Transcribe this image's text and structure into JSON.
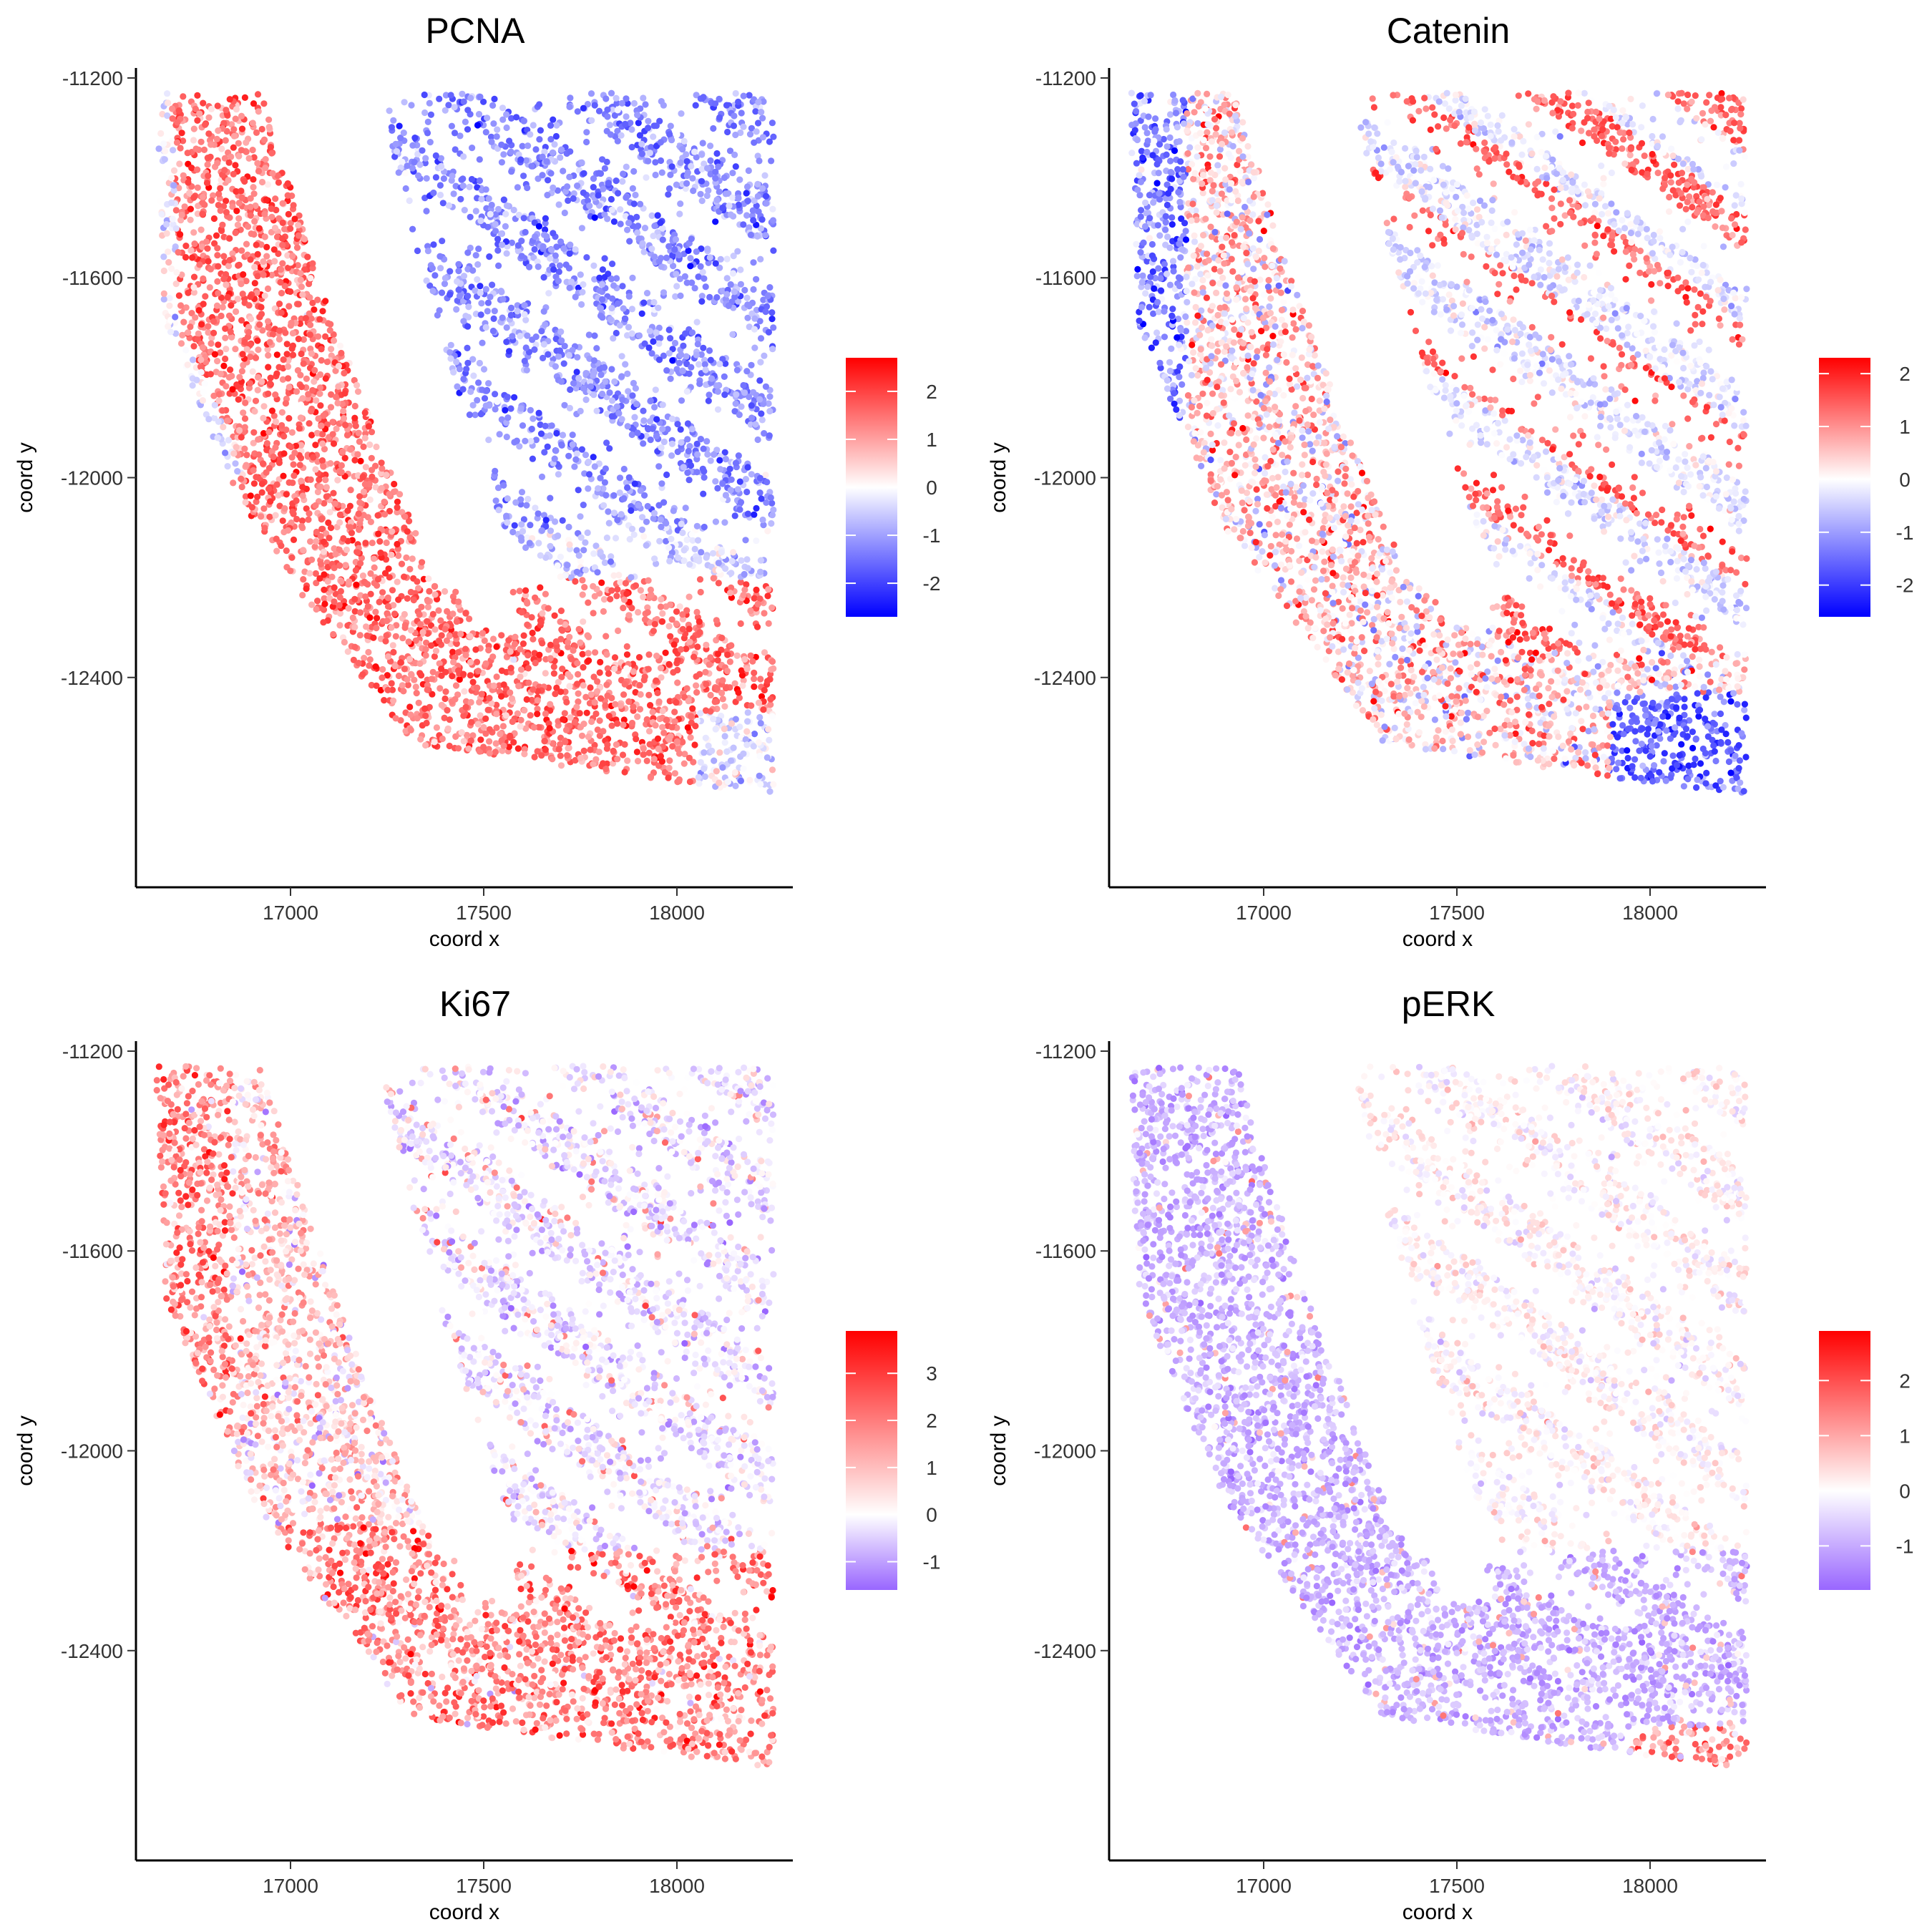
{
  "figure": {
    "panels_count": 4
  },
  "chart_data": [
    {
      "type": "scatter",
      "title": "PCNA",
      "xlabel": "coord x",
      "ylabel": "coord y",
      "xlim": [
        16600,
        18300
      ],
      "ylim": [
        -12820,
        -11180
      ],
      "xticks": [
        17000,
        17500,
        18000
      ],
      "xtick_labels": [
        "17000",
        "17500",
        "18000"
      ],
      "yticks": [
        -11200,
        -11600,
        -12000,
        -12400
      ],
      "ytick_labels": [
        "-11200",
        "-11600",
        "-12000",
        "-12400"
      ],
      "grid": false,
      "legend_placement": "right",
      "colorbar": {
        "range": [
          -2.7,
          2.7
        ],
        "ticks": [
          -2,
          -1,
          0,
          1,
          2
        ],
        "tick_labels": [
          "-2",
          "-1",
          "0",
          "1",
          "2"
        ],
        "low_color": "#0000ff",
        "mid_color": "#ffffff",
        "high_color": "#ff0000"
      },
      "pattern": "pcna",
      "seed": 11
    },
    {
      "type": "scatter",
      "title": "Catenin",
      "xlabel": "coord x",
      "ylabel": "coord y",
      "xlim": [
        16600,
        18300
      ],
      "ylim": [
        -12820,
        -11180
      ],
      "xticks": [
        17000,
        17500,
        18000
      ],
      "xtick_labels": [
        "17000",
        "17500",
        "18000"
      ],
      "yticks": [
        -11200,
        -11600,
        -12000,
        -12400
      ],
      "ytick_labels": [
        "-11200",
        "-11600",
        "-12000",
        "-12400"
      ],
      "grid": false,
      "legend_placement": "right",
      "colorbar": {
        "range": [
          -2.6,
          2.3
        ],
        "ticks": [
          -2,
          -1,
          0,
          1,
          2
        ],
        "tick_labels": [
          "-2",
          "-1",
          "0",
          "1",
          "2"
        ],
        "low_color": "#0000ff",
        "mid_color": "#ffffff",
        "high_color": "#ff0000"
      },
      "pattern": "catenin",
      "seed": 23
    },
    {
      "type": "scatter",
      "title": "Ki67",
      "xlabel": "coord x",
      "ylabel": "coord y",
      "xlim": [
        16600,
        18300
      ],
      "ylim": [
        -12820,
        -11180
      ],
      "xticks": [
        17000,
        17500,
        18000
      ],
      "xtick_labels": [
        "17000",
        "17500",
        "18000"
      ],
      "yticks": [
        -11200,
        -11600,
        -12000,
        -12400
      ],
      "ytick_labels": [
        "-11200",
        "-11600",
        "-12000",
        "-12400"
      ],
      "grid": false,
      "legend_placement": "right",
      "colorbar": {
        "range": [
          -1.6,
          3.9
        ],
        "ticks": [
          -1,
          0,
          1,
          2,
          3
        ],
        "tick_labels": [
          "-1",
          "0",
          "1",
          "2",
          "3"
        ],
        "low_color": "#9966ff",
        "mid_color": "#ffffff",
        "high_color": "#ff0000"
      },
      "pattern": "ki67",
      "seed": 37
    },
    {
      "type": "scatter",
      "title": "pERK",
      "xlabel": "coord x",
      "ylabel": "coord y",
      "xlim": [
        16600,
        18300
      ],
      "ylim": [
        -12820,
        -11180
      ],
      "xticks": [
        17000,
        17500,
        18000
      ],
      "xtick_labels": [
        "17000",
        "17500",
        "18000"
      ],
      "yticks": [
        -11200,
        -11600,
        -12000,
        -12400
      ],
      "ytick_labels": [
        "-11200",
        "-11600",
        "-12000",
        "-12400"
      ],
      "grid": false,
      "legend_placement": "right",
      "colorbar": {
        "range": [
          -1.8,
          2.9
        ],
        "ticks": [
          -1,
          0,
          1,
          2
        ],
        "tick_labels": [
          "-1",
          "0",
          "1",
          "2"
        ],
        "low_color": "#9966ff",
        "mid_color": "#ffffff",
        "high_color": "#ff0000"
      },
      "pattern": "perk",
      "seed": 51
    }
  ]
}
